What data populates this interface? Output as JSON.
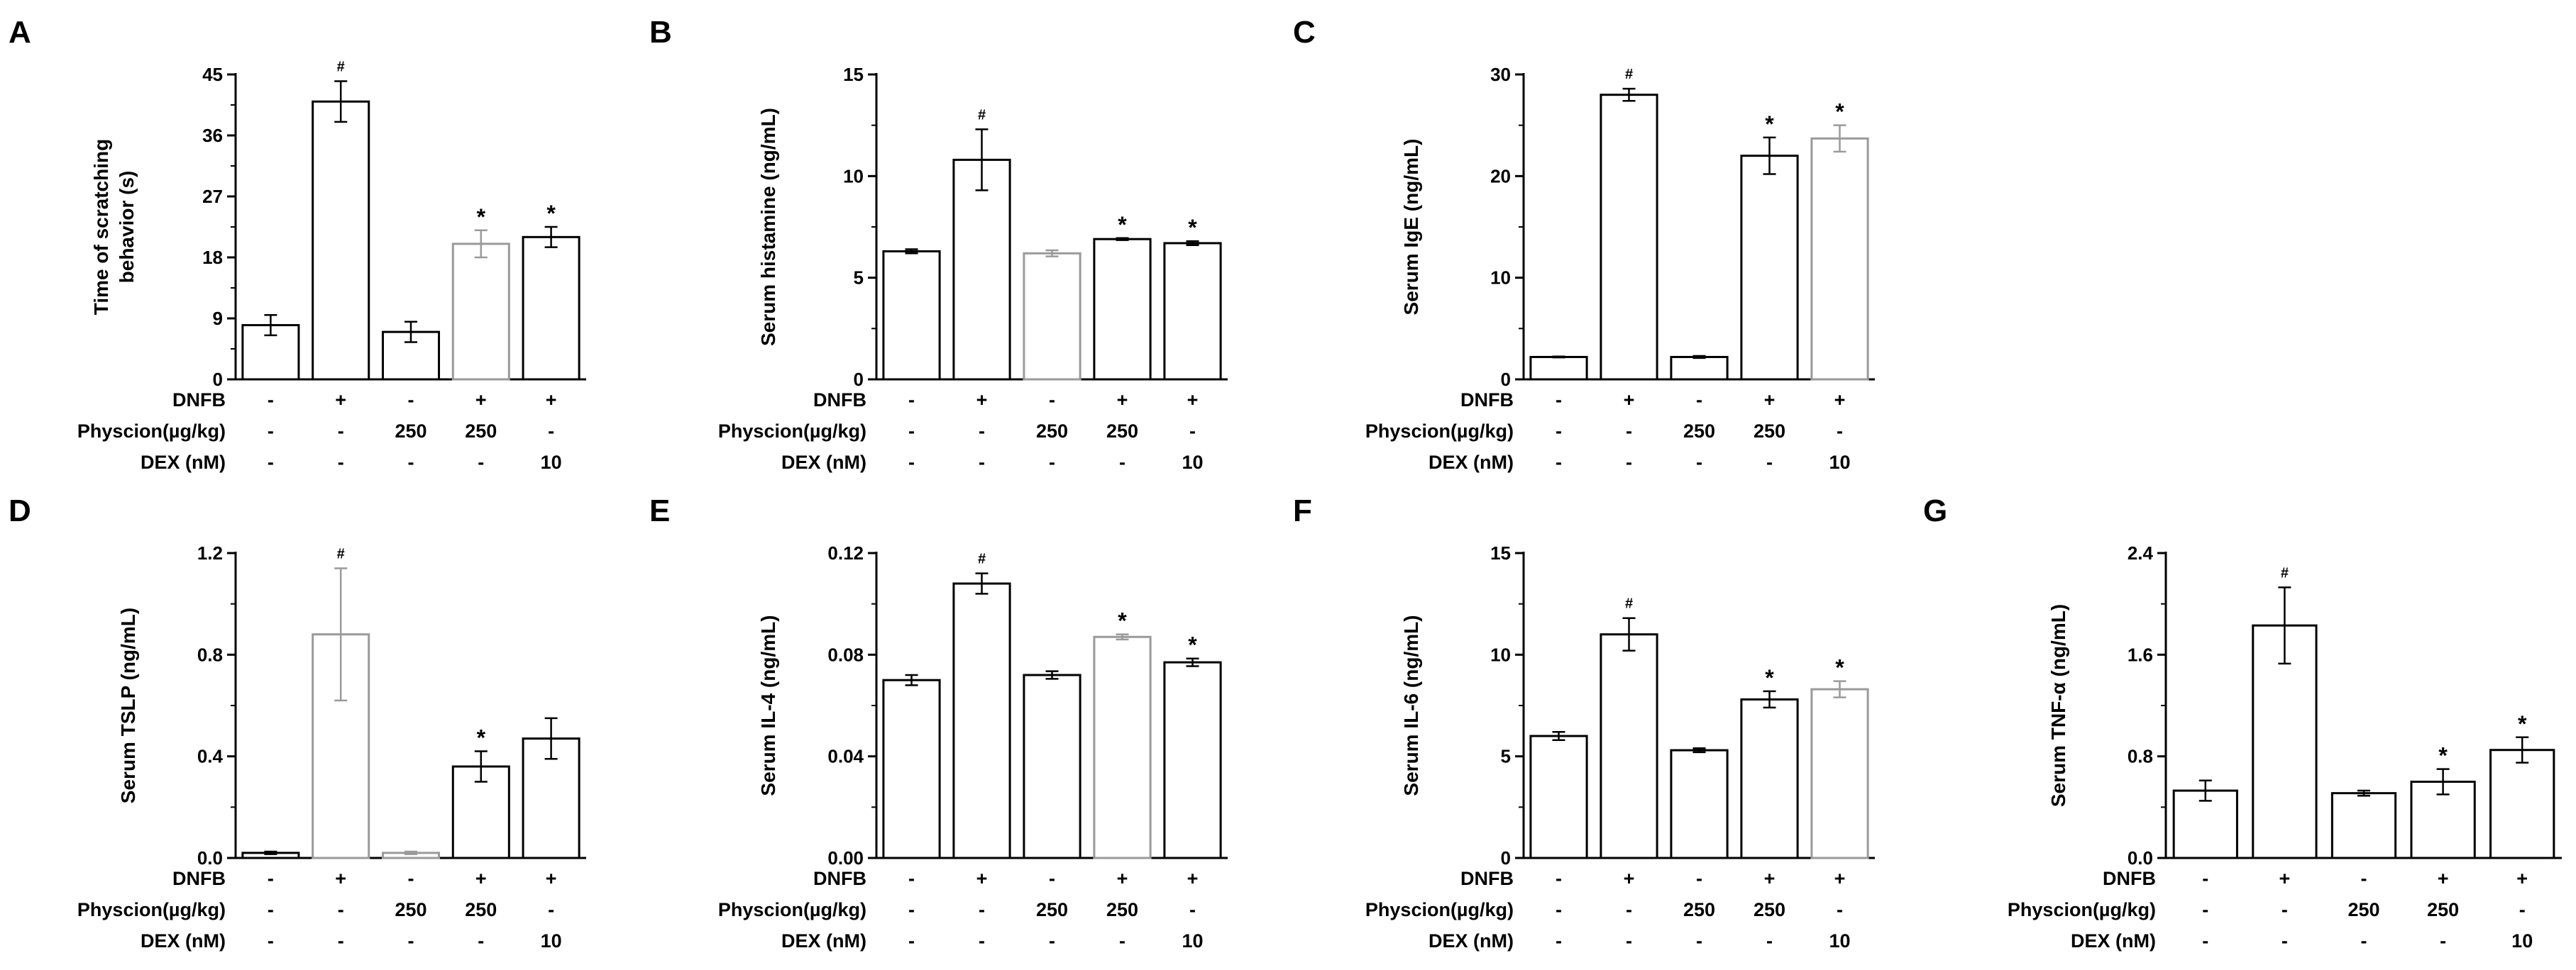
{
  "row_labels": [
    "DNFB",
    "Physcion(µg/kg)",
    "DEX (nM)"
  ],
  "conditions": [
    [
      "-",
      "+",
      "-",
      "+",
      "+"
    ],
    [
      "-",
      "-",
      "250",
      "250",
      "-"
    ],
    [
      "-",
      "-",
      "-",
      "-",
      "10"
    ]
  ],
  "chart_data": [
    {
      "panel": "A",
      "type": "bar",
      "ylabel": [
        "Time of scratching",
        "behavior (s)"
      ],
      "ylim": [
        0,
        45
      ],
      "yticks": [
        "0",
        "9",
        "18",
        "27",
        "36",
        "45"
      ],
      "values": [
        8,
        41,
        7,
        20,
        21
      ],
      "errors": [
        1.5,
        3,
        1.5,
        2,
        1.5
      ],
      "marks": [
        "",
        "#",
        "",
        "*",
        "*"
      ],
      "bar_colors": [
        "#000000",
        "#000000",
        "#000000",
        "#9a9a9a",
        "#000000"
      ]
    },
    {
      "panel": "B",
      "type": "bar",
      "ylabel": [
        "Serum histamine (ng/mL)"
      ],
      "ylim": [
        0,
        15
      ],
      "yticks": [
        "0",
        "5",
        "10",
        "15"
      ],
      "values": [
        6.3,
        10.8,
        6.2,
        6.9,
        6.7
      ],
      "errors": [
        0.1,
        1.5,
        0.15,
        0.05,
        0.1
      ],
      "marks": [
        "",
        "#",
        "",
        "*",
        "*"
      ],
      "bar_colors": [
        "#000000",
        "#000000",
        "#9a9a9a",
        "#000000",
        "#000000"
      ]
    },
    {
      "panel": "C",
      "type": "bar",
      "ylabel": [
        "Serum IgE (ng/mL)"
      ],
      "ylim": [
        0,
        30
      ],
      "yticks": [
        "0",
        "10",
        "20",
        "30"
      ],
      "values": [
        2.2,
        28,
        2.2,
        22,
        23.7
      ],
      "errors": [
        0.05,
        0.6,
        0.1,
        1.8,
        1.3
      ],
      "marks": [
        "",
        "#",
        "",
        "*",
        "*"
      ],
      "bar_colors": [
        "#000000",
        "#000000",
        "#000000",
        "#000000",
        "#9a9a9a"
      ]
    },
    {
      "panel": "D",
      "type": "bar",
      "ylabel": [
        "Serum TSLP (ng/mL)"
      ],
      "ylim": [
        0,
        1.2
      ],
      "yticks": [
        "0.0",
        "0.4",
        "0.8",
        "1.2"
      ],
      "values": [
        0.02,
        0.88,
        0.02,
        0.36,
        0.47
      ],
      "errors": [
        0.005,
        0.26,
        0.005,
        0.06,
        0.08
      ],
      "marks": [
        "",
        "#",
        "",
        "*",
        ""
      ],
      "bar_colors": [
        "#000000",
        "#9a9a9a",
        "#9a9a9a",
        "#000000",
        "#000000"
      ]
    },
    {
      "panel": "E",
      "type": "bar",
      "ylabel": [
        "Serum IL-4 (ng/mL)"
      ],
      "ylim": [
        0,
        0.12
      ],
      "yticks": [
        "0.00",
        "0.04",
        "0.08",
        "0.12"
      ],
      "values": [
        0.07,
        0.108,
        0.072,
        0.087,
        0.077
      ],
      "errors": [
        0.002,
        0.004,
        0.0015,
        0.001,
        0.0015
      ],
      "marks": [
        "",
        "#",
        "",
        "*",
        "*"
      ],
      "bar_colors": [
        "#000000",
        "#000000",
        "#000000",
        "#9a9a9a",
        "#000000"
      ]
    },
    {
      "panel": "F",
      "type": "bar",
      "ylabel": [
        "Serum IL-6 (ng/mL)"
      ],
      "ylim": [
        0,
        15
      ],
      "yticks": [
        "0",
        "5",
        "10",
        "15"
      ],
      "values": [
        6.0,
        11.0,
        5.3,
        7.8,
        8.3
      ],
      "errors": [
        0.2,
        0.8,
        0.1,
        0.4,
        0.4
      ],
      "marks": [
        "",
        "#",
        "",
        "*",
        "*"
      ],
      "bar_colors": [
        "#000000",
        "#000000",
        "#000000",
        "#000000",
        "#9a9a9a"
      ]
    },
    {
      "panel": "G",
      "type": "bar",
      "ylabel": [
        "Serum TNF-α (ng/mL)"
      ],
      "ylim": [
        0,
        2.4
      ],
      "yticks": [
        "0.0",
        "0.8",
        "1.6",
        "2.4"
      ],
      "values": [
        0.53,
        1.83,
        0.51,
        0.6,
        0.85
      ],
      "errors": [
        0.08,
        0.3,
        0.02,
        0.1,
        0.1
      ],
      "marks": [
        "",
        "#",
        "",
        "*",
        "*"
      ],
      "bar_colors": [
        "#000000",
        "#000000",
        "#000000",
        "#000000",
        "#000000"
      ]
    }
  ]
}
